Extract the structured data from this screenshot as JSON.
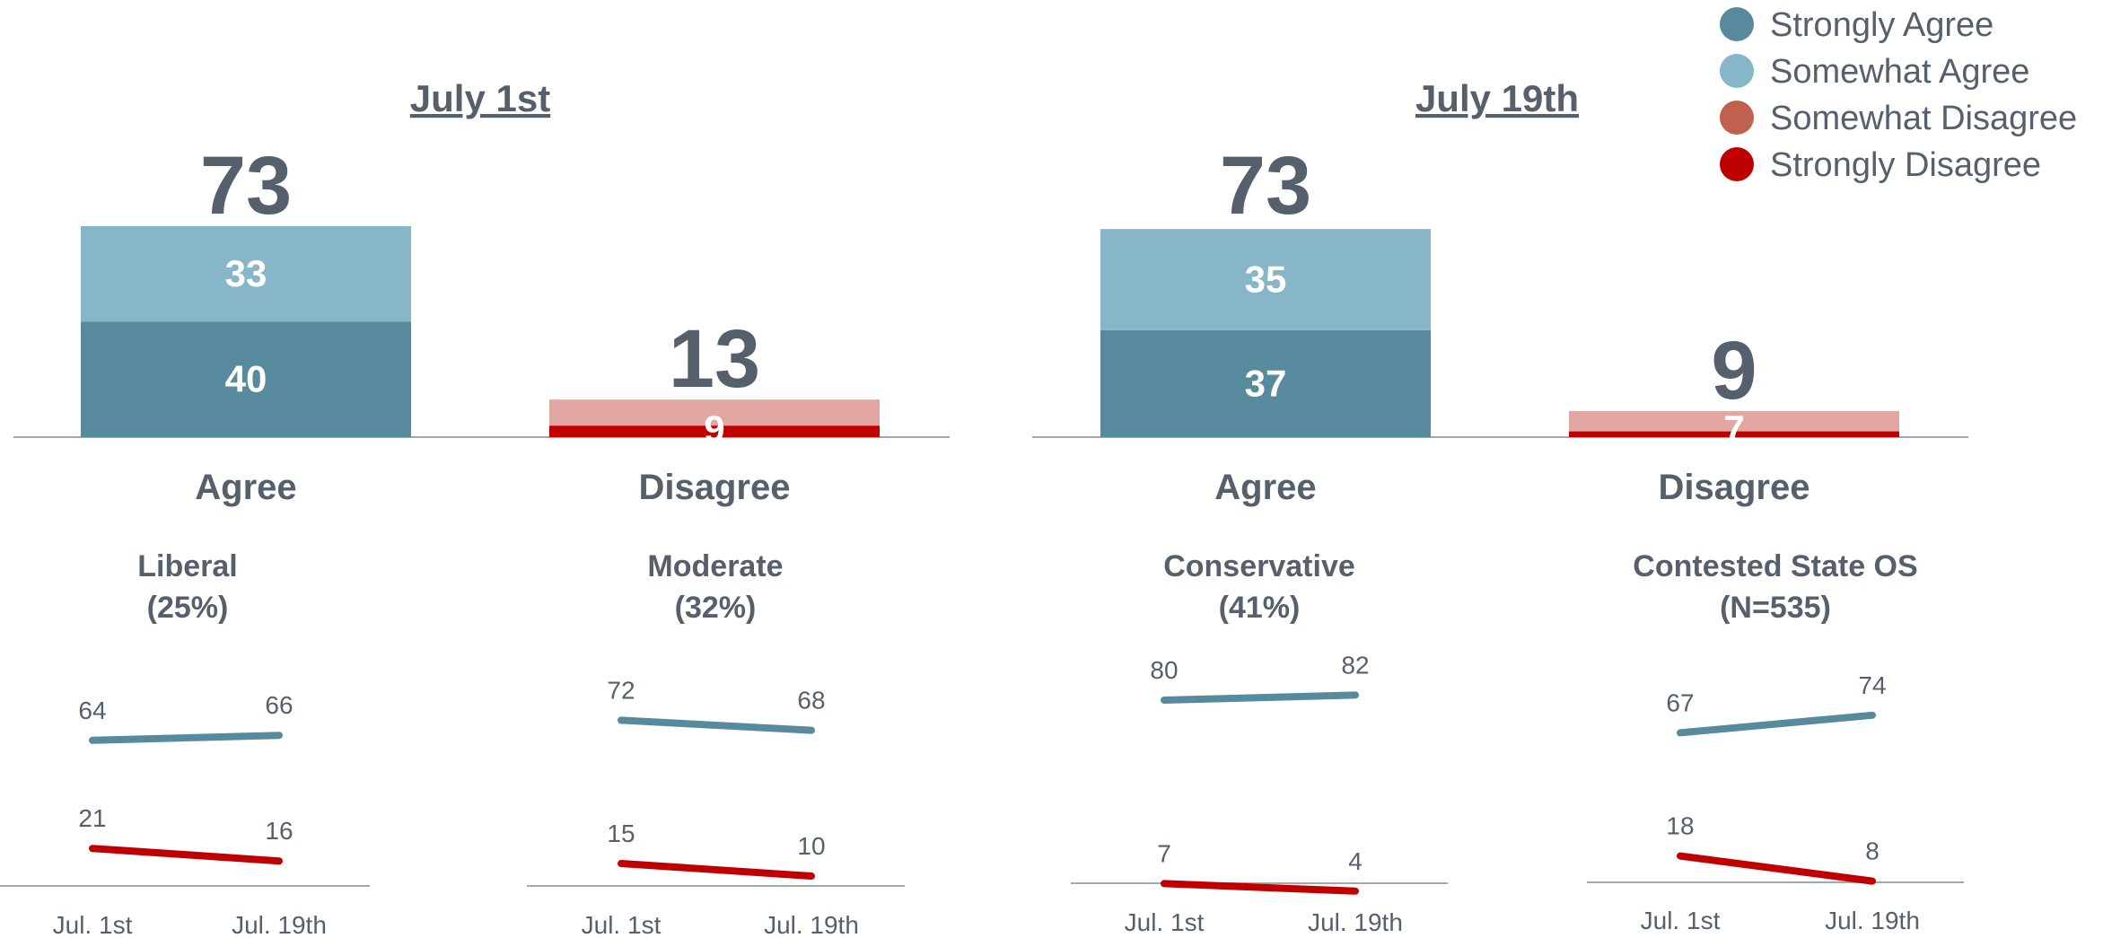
{
  "colors": {
    "strongly_agree": "#588a9e",
    "somewhat_agree": "#86b6c8",
    "somewhat_disagree": "#e3a7a3",
    "strongly_disagree": "#c00000",
    "legend_somewhat_disagree": "#c0614f",
    "text": "#56606c",
    "axis": "#a6a6a6"
  },
  "legend": [
    {
      "label": "Strongly Agree",
      "color_key": "strongly_agree"
    },
    {
      "label": "Somewhat Agree",
      "color_key": "somewhat_agree"
    },
    {
      "label": "Somewhat Disagree",
      "color_key": "legend_somewhat_disagree"
    },
    {
      "label": "Strongly Disagree",
      "color_key": "strongly_disagree"
    }
  ],
  "chart_data": [
    {
      "type": "bar",
      "stacked": true,
      "title": "July 1st",
      "categories": [
        "Agree",
        "Disagree"
      ],
      "totals": [
        73,
        13
      ],
      "series": [
        {
          "name": "Strongly Agree",
          "values": [
            40,
            0
          ]
        },
        {
          "name": "Somewhat Agree",
          "values": [
            33,
            0
          ]
        },
        {
          "name": "Strongly Disagree",
          "values": [
            0,
            4
          ]
        },
        {
          "name": "Somewhat Disagree",
          "values": [
            0,
            9
          ]
        }
      ],
      "segment_labels": [
        [
          "40",
          "33"
        ],
        [
          "9"
        ]
      ],
      "ylim": [
        0,
        100
      ]
    },
    {
      "type": "bar",
      "stacked": true,
      "title": "July 19th",
      "categories": [
        "Agree",
        "Disagree"
      ],
      "totals": [
        73,
        9
      ],
      "series": [
        {
          "name": "Strongly Agree",
          "values": [
            37,
            0
          ]
        },
        {
          "name": "Somewhat Agree",
          "values": [
            35,
            0
          ]
        },
        {
          "name": "Strongly Disagree",
          "values": [
            0,
            2
          ]
        },
        {
          "name": "Somewhat Disagree",
          "values": [
            0,
            7
          ]
        }
      ],
      "segment_labels": [
        [
          "37",
          "35"
        ],
        [
          "7"
        ]
      ],
      "ylim": [
        0,
        100
      ]
    },
    {
      "type": "line",
      "title": "Liberal",
      "subtitle": "(25%)",
      "x": [
        "Jul. 1st",
        "Jul. 19th"
      ],
      "series": [
        {
          "name": "Agree",
          "values": [
            64,
            66
          ]
        },
        {
          "name": "Disagree",
          "values": [
            21,
            16
          ]
        }
      ],
      "ylim": [
        0,
        100
      ]
    },
    {
      "type": "line",
      "title": "Moderate",
      "subtitle": "(32%)",
      "x": [
        "Jul. 1st",
        "Jul. 19th"
      ],
      "series": [
        {
          "name": "Agree",
          "values": [
            72,
            68
          ]
        },
        {
          "name": "Disagree",
          "values": [
            15,
            10
          ]
        }
      ],
      "ylim": [
        0,
        100
      ]
    },
    {
      "type": "line",
      "title": "Conservative",
      "subtitle": "(41%)",
      "x": [
        "Jul. 1st",
        "Jul. 19th"
      ],
      "series": [
        {
          "name": "Agree",
          "values": [
            80,
            82
          ]
        },
        {
          "name": "Disagree",
          "values": [
            7,
            4
          ]
        }
      ],
      "ylim": [
        0,
        100
      ]
    },
    {
      "type": "line",
      "title": "Contested State OS",
      "subtitle": "(N=535)",
      "x": [
        "Jul. 1st",
        "Jul. 19th"
      ],
      "series": [
        {
          "name": "Agree",
          "values": [
            67,
            74
          ]
        },
        {
          "name": "Disagree",
          "values": [
            18,
            8
          ]
        }
      ],
      "ylim": [
        0,
        100
      ]
    }
  ]
}
